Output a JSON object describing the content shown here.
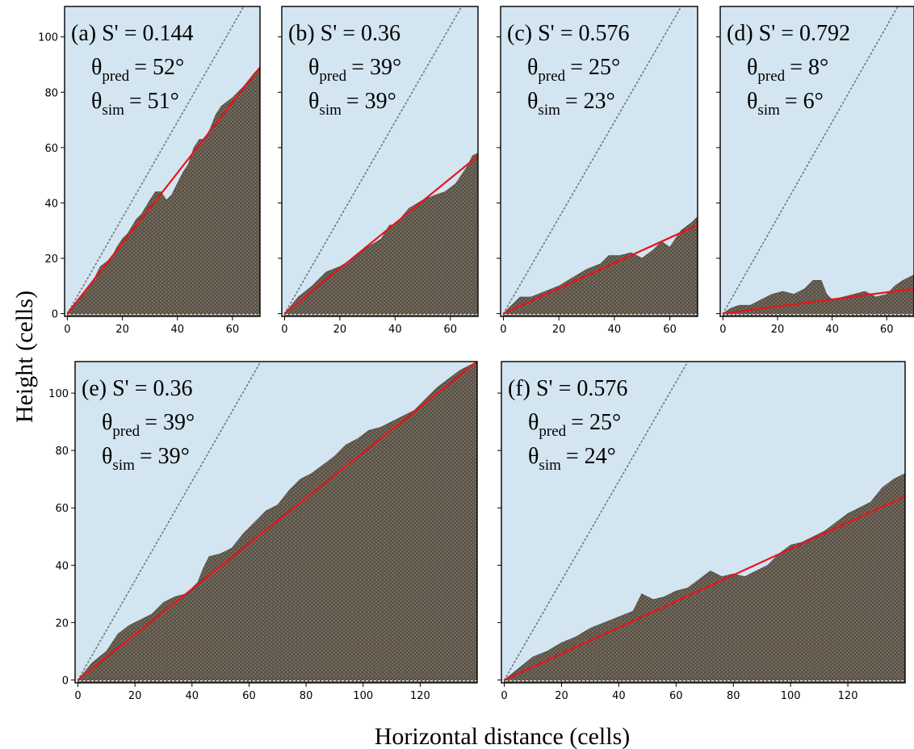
{
  "figure": {
    "ylabel": "Height (cells)",
    "xlabel": "Horizontal distance (cells)"
  },
  "colors": {
    "background": "#d3e5f0",
    "pile": "#5a5247",
    "fit_line": "#e8141c",
    "reference_line": "#6a7480"
  },
  "chart_data": [
    {
      "id": "a",
      "type": "area",
      "label": "(a) S' = 0.144",
      "theta_pred_symbol": "θ",
      "theta_pred_sub": "pred",
      "theta_pred_value": "= 52°",
      "theta_sim_symbol": "θ",
      "theta_sim_sub": "sim",
      "theta_sim_value": "= 51°",
      "xlim": [
        -1,
        70
      ],
      "ylim": [
        -1,
        111
      ],
      "xticks": [
        0,
        20,
        40,
        60
      ],
      "yticks": [
        0,
        20,
        40,
        60,
        80,
        100
      ],
      "reference_slope": 1.732,
      "fit_line": {
        "x": [
          0,
          70
        ],
        "y": [
          0,
          89
        ]
      },
      "surface": {
        "x": [
          0,
          5,
          10,
          12,
          16,
          18,
          20,
          22,
          25,
          27,
          30,
          32,
          34,
          36,
          38,
          40,
          42,
          44,
          46,
          48,
          50,
          52,
          54,
          56,
          60,
          64,
          68,
          70
        ],
        "y": [
          0,
          6,
          13,
          17,
          20,
          24,
          27,
          29,
          34,
          36,
          41,
          44,
          44,
          41,
          43,
          47,
          51,
          54,
          60,
          63,
          63,
          67,
          72,
          75,
          78,
          82,
          87,
          89
        ]
      }
    },
    {
      "id": "b",
      "type": "area",
      "label": "(b) S' = 0.36",
      "theta_pred_symbol": "θ",
      "theta_pred_sub": "pred",
      "theta_pred_value": "= 39°",
      "theta_sim_symbol": "θ",
      "theta_sim_sub": "sim",
      "theta_sim_value": "= 39°",
      "xlim": [
        -1,
        70
      ],
      "ylim": [
        -1,
        111
      ],
      "xticks": [
        0,
        20,
        40,
        60
      ],
      "yticks": [
        0,
        20,
        40,
        60,
        80,
        100
      ],
      "reference_slope": 1.732,
      "fit_line": {
        "x": [
          0,
          70
        ],
        "y": [
          0,
          57
        ]
      },
      "surface": {
        "x": [
          0,
          5,
          10,
          12,
          15,
          20,
          25,
          30,
          35,
          38,
          40,
          45,
          50,
          55,
          58,
          62,
          66,
          68,
          70
        ],
        "y": [
          0,
          6,
          10,
          12,
          15,
          17,
          20,
          24,
          27,
          32,
          32,
          38,
          41,
          43,
          44,
          47,
          53,
          57,
          58
        ]
      }
    },
    {
      "id": "c",
      "type": "area",
      "label": "(c) S' = 0.576",
      "theta_pred_symbol": "θ",
      "theta_pred_sub": "pred",
      "theta_pred_value": "= 25°",
      "theta_sim_symbol": "θ",
      "theta_sim_sub": "sim",
      "theta_sim_value": "= 23°",
      "xlim": [
        -1,
        70
      ],
      "ylim": [
        -1,
        111
      ],
      "xticks": [
        0,
        20,
        40,
        60
      ],
      "yticks": [
        0,
        20,
        40,
        60,
        80,
        100
      ],
      "reference_slope": 1.732,
      "fit_line": {
        "x": [
          0,
          70
        ],
        "y": [
          0,
          32
        ]
      },
      "surface": {
        "x": [
          0,
          3,
          6,
          10,
          15,
          20,
          25,
          30,
          35,
          38,
          42,
          46,
          50,
          54,
          57,
          60,
          64,
          68,
          70
        ],
        "y": [
          0,
          3,
          6,
          6,
          8,
          10,
          13,
          16,
          18,
          21,
          21,
          22,
          20,
          23,
          26,
          24,
          30,
          33,
          35
        ]
      }
    },
    {
      "id": "d",
      "type": "area",
      "label": "(d) S' = 0.792",
      "theta_pred_symbol": "θ",
      "theta_pred_sub": "pred",
      "theta_pred_value": "= 8°",
      "theta_sim_symbol": "θ",
      "theta_sim_sub": "sim",
      "theta_sim_value": "= 6°",
      "xlim": [
        -1,
        70
      ],
      "ylim": [
        -1,
        111
      ],
      "xticks": [
        0,
        20,
        40,
        60
      ],
      "yticks": [
        0,
        20,
        40,
        60,
        80,
        100
      ],
      "reference_slope": 1.732,
      "fit_line": {
        "x": [
          0,
          70
        ],
        "y": [
          0,
          9
        ]
      },
      "surface": {
        "x": [
          0,
          3,
          6,
          10,
          14,
          18,
          22,
          26,
          30,
          33,
          36,
          38,
          40,
          44,
          48,
          52,
          56,
          60,
          63,
          66,
          70
        ],
        "y": [
          0,
          2,
          3,
          3,
          5,
          7,
          8,
          7,
          9,
          12,
          12,
          7,
          5,
          6,
          7,
          8,
          6,
          7,
          10,
          12,
          14
        ]
      }
    },
    {
      "id": "e",
      "type": "area",
      "label": "(e) S' = 0.36",
      "theta_pred_symbol": "θ",
      "theta_pred_sub": "pred",
      "theta_pred_value": "= 39°",
      "theta_sim_symbol": "θ",
      "theta_sim_sub": "sim",
      "theta_sim_value": "= 39°",
      "xlim": [
        -1,
        140
      ],
      "ylim": [
        -1,
        111
      ],
      "xticks": [
        0,
        20,
        40,
        60,
        80,
        100,
        120
      ],
      "yticks": [
        0,
        20,
        40,
        60,
        80,
        100
      ],
      "reference_slope": 1.732,
      "fit_line": {
        "x": [
          0,
          140
        ],
        "y": [
          0,
          111
        ]
      },
      "surface": {
        "x": [
          0,
          5,
          10,
          14,
          18,
          22,
          26,
          30,
          34,
          38,
          42,
          44,
          46,
          50,
          54,
          58,
          62,
          66,
          70,
          74,
          78,
          82,
          86,
          90,
          94,
          98,
          102,
          106,
          110,
          114,
          118,
          122,
          126,
          130,
          134,
          138,
          140
        ],
        "y": [
          0,
          6,
          10,
          16,
          19,
          21,
          23,
          27,
          29,
          30,
          34,
          39,
          43,
          44,
          46,
          51,
          55,
          59,
          61,
          66,
          70,
          72,
          75,
          78,
          82,
          84,
          87,
          88,
          90,
          92,
          94,
          98,
          102,
          105,
          108,
          110,
          111
        ]
      }
    },
    {
      "id": "f",
      "type": "area",
      "label": "(f) S' = 0.576",
      "theta_pred_symbol": "θ",
      "theta_pred_sub": "pred",
      "theta_pred_value": "= 25°",
      "theta_sim_symbol": "θ",
      "theta_sim_sub": "sim",
      "theta_sim_value": "= 24°",
      "xlim": [
        -1,
        140
      ],
      "ylim": [
        -1,
        111
      ],
      "xticks": [
        0,
        20,
        40,
        60,
        80,
        100,
        120
      ],
      "yticks": [
        0,
        20,
        40,
        60,
        80,
        100
      ],
      "reference_slope": 1.732,
      "fit_line": {
        "x": [
          0,
          140
        ],
        "y": [
          0,
          64
        ]
      },
      "surface": {
        "x": [
          0,
          5,
          10,
          15,
          20,
          25,
          30,
          35,
          40,
          45,
          48,
          52,
          56,
          60,
          64,
          68,
          72,
          76,
          80,
          84,
          88,
          92,
          96,
          100,
          104,
          108,
          112,
          116,
          120,
          124,
          128,
          132,
          136,
          140
        ],
        "y": [
          0,
          4,
          8,
          10,
          13,
          15,
          18,
          20,
          22,
          24,
          30,
          28,
          29,
          31,
          32,
          35,
          38,
          36,
          37,
          36,
          38,
          40,
          44,
          47,
          48,
          50,
          52,
          55,
          58,
          60,
          62,
          67,
          70,
          72
        ]
      }
    }
  ]
}
